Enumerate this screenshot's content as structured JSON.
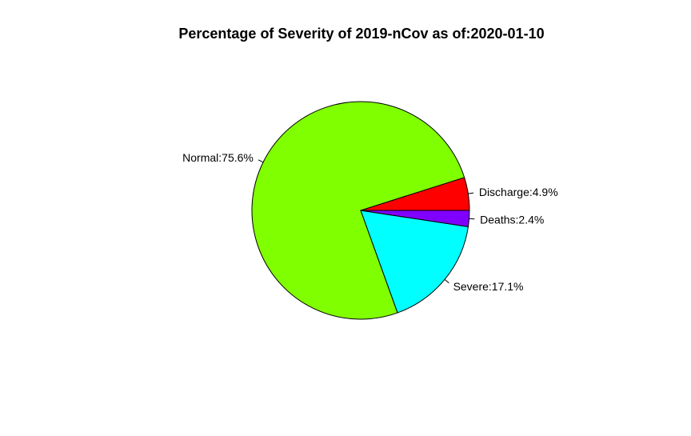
{
  "chart_data": {
    "type": "pie",
    "title": "Percentage of Severity of 2019-nCov as of:2020-01-10",
    "direction": "counterclockwise",
    "start_angle_deg": 0,
    "slices": [
      {
        "label": "Discharge:4.9%",
        "value": 4.9,
        "color": "#FF0000"
      },
      {
        "label": "Normal:75.6%",
        "value": 75.6,
        "color": "#80FF00"
      },
      {
        "label": "Severe:17.1%",
        "value": 17.1,
        "color": "#00FFFF"
      },
      {
        "label": "Deaths:2.4%",
        "value": 2.4,
        "color": "#8000FF"
      }
    ]
  }
}
